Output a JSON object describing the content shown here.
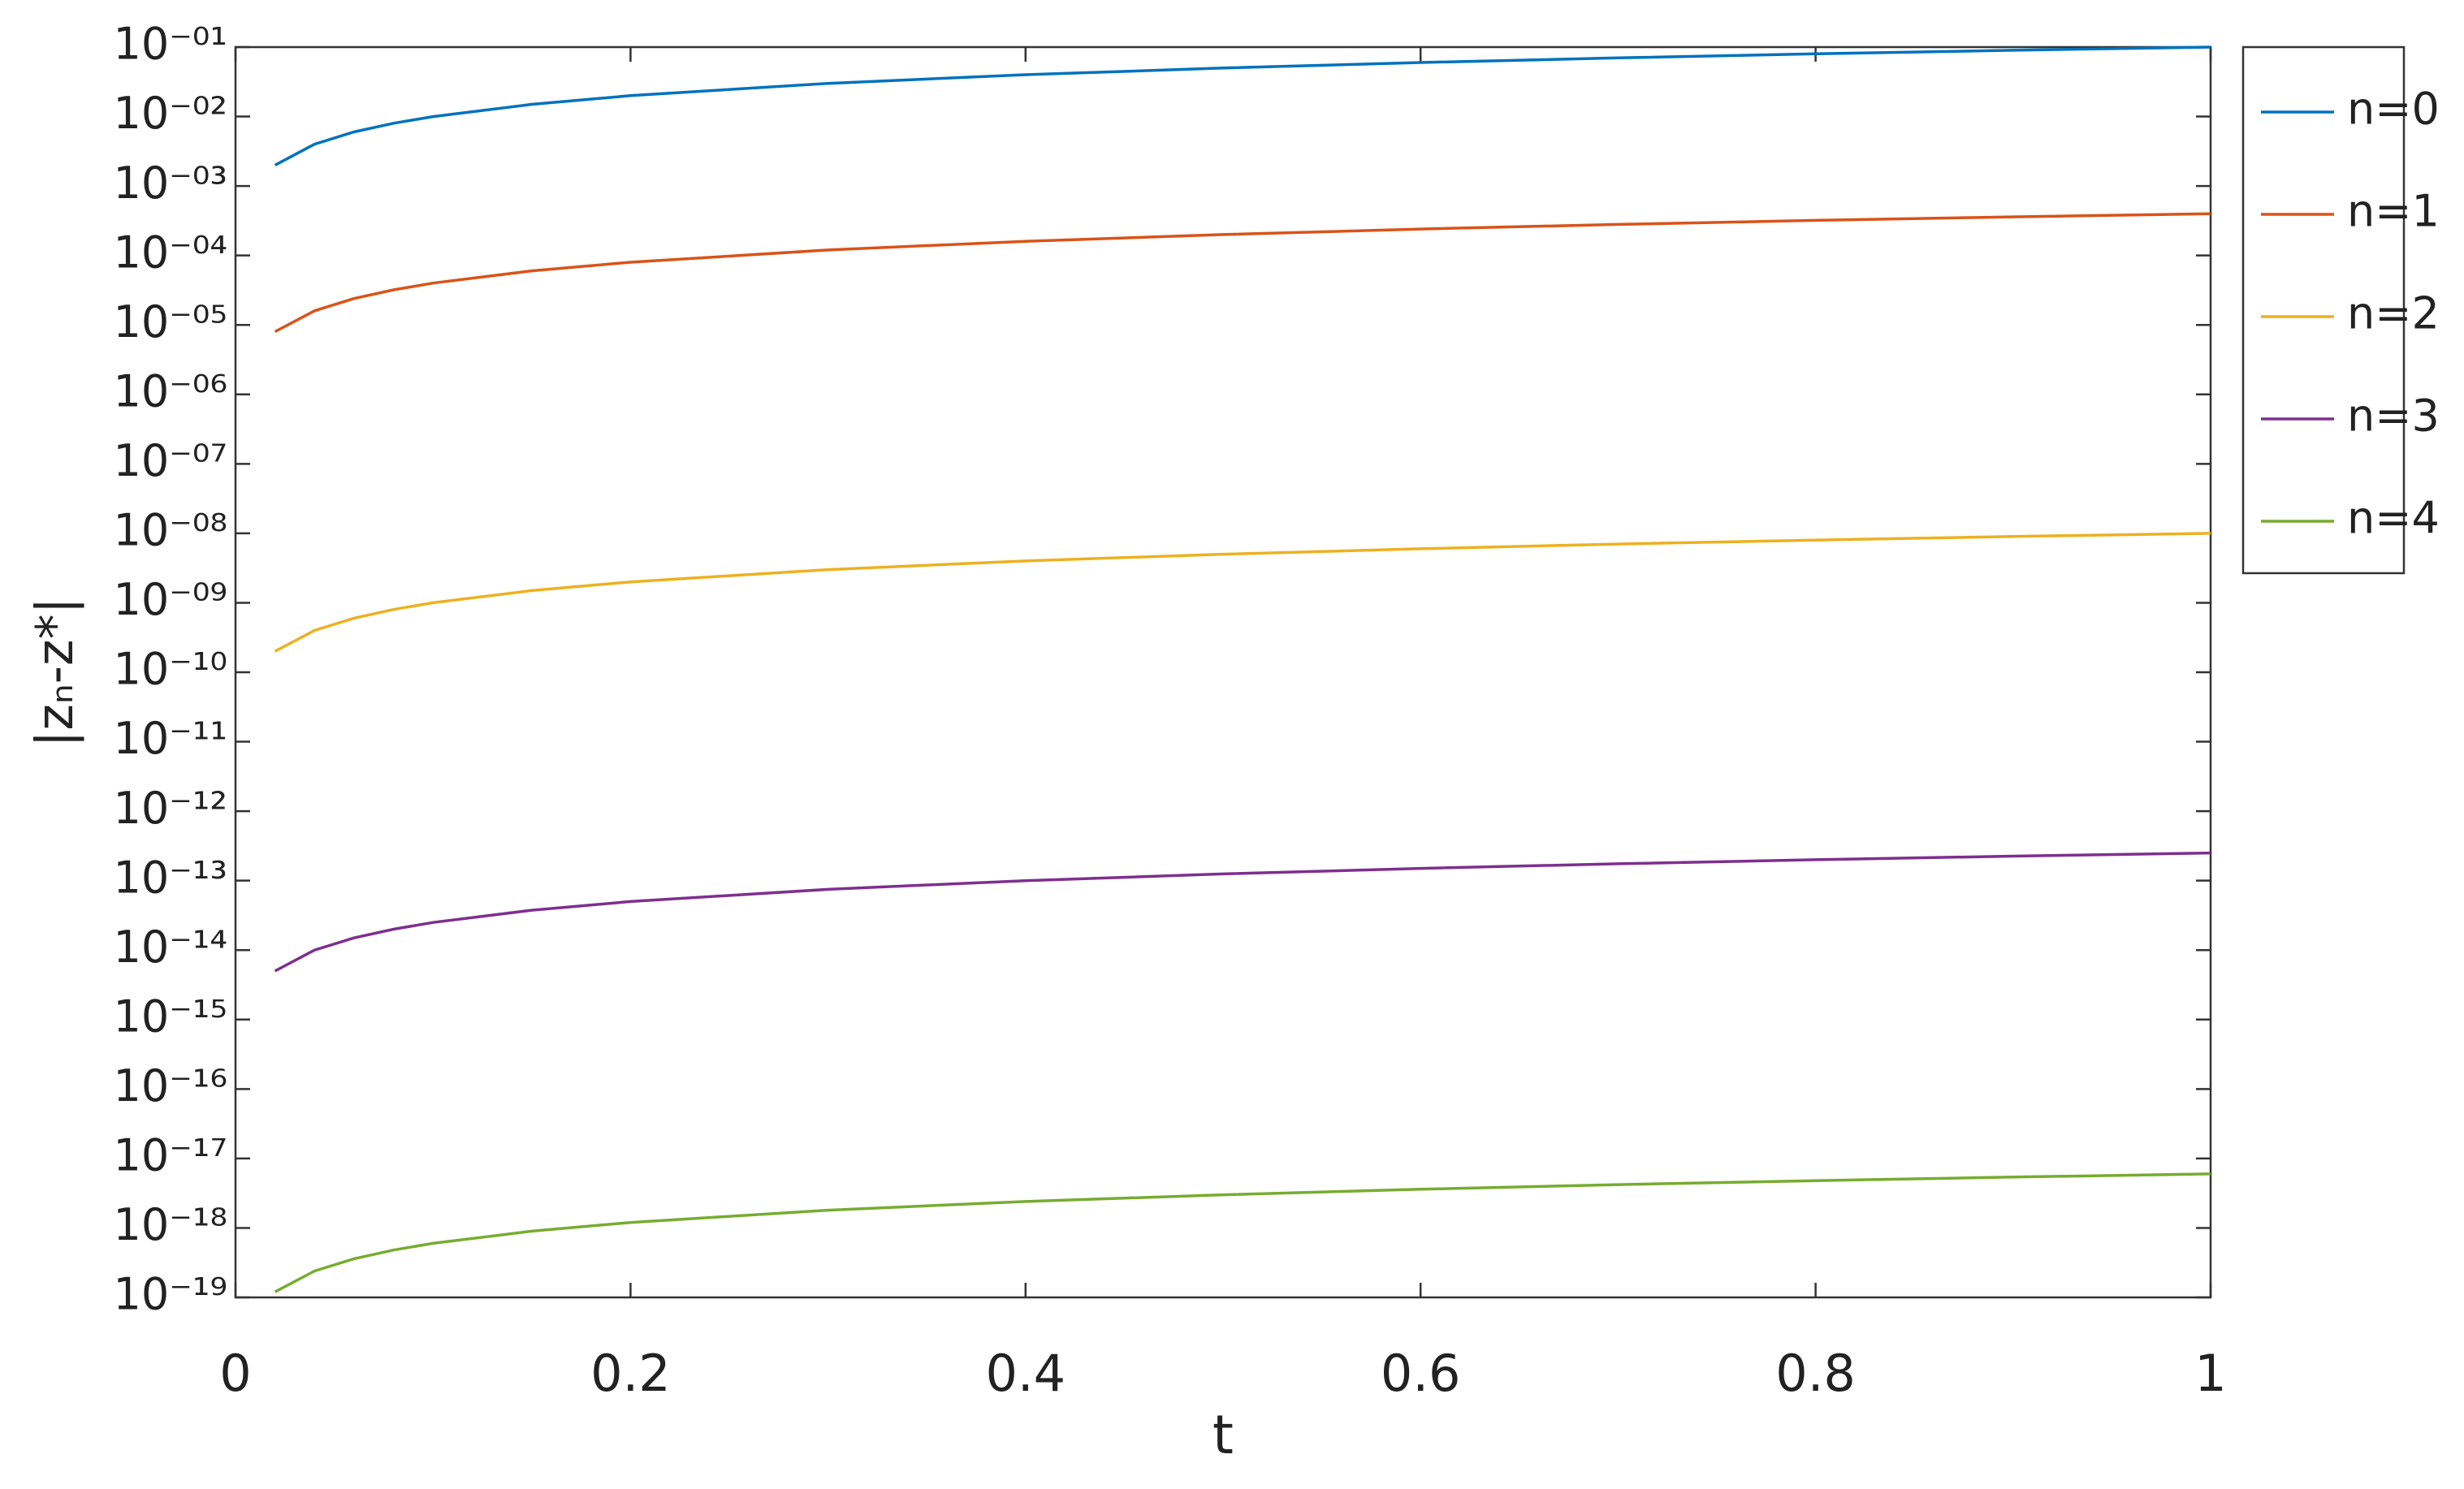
{
  "chart_data": {
    "type": "line",
    "xlabel": "t",
    "ylabel": "|zₙ-z*|",
    "x": [
      0.02,
      0.04,
      0.06,
      0.08,
      0.1,
      0.15,
      0.2,
      0.3,
      0.4,
      0.5,
      0.6,
      0.7,
      0.8,
      0.9,
      1
    ],
    "series": [
      {
        "name": "n=0",
        "color": "#0072bd",
        "values": [
          0.002,
          0.004,
          0.006,
          0.008,
          0.01,
          0.015,
          0.02,
          0.03,
          0.04,
          0.05,
          0.06,
          0.07,
          0.08,
          0.09,
          0.1
        ]
      },
      {
        "name": "n=1",
        "color": "#d95319",
        "values": [
          8e-06,
          1.6e-05,
          2.4e-05,
          3.2e-05,
          4e-05,
          6e-05,
          8e-05,
          0.00012,
          0.00016,
          0.0002,
          0.00024,
          0.00028,
          0.00032,
          0.00036,
          0.0004
        ]
      },
      {
        "name": "n=2",
        "color": "#edb120",
        "values": [
          2e-10,
          4e-10,
          6e-10,
          8e-10,
          1e-09,
          1.5e-09,
          2e-09,
          3e-09,
          4e-09,
          5e-09,
          6e-09,
          7e-09,
          8e-09,
          9e-09,
          1e-08
        ]
      },
      {
        "name": "n=3",
        "color": "#7e2f8e",
        "values": [
          5e-15,
          1e-14,
          1.5e-14,
          2e-14,
          2.5e-14,
          3.75e-14,
          5e-14,
          7.5e-14,
          1e-13,
          1.25e-13,
          1.5e-13,
          1.75e-13,
          2e-13,
          2.25e-13,
          2.5e-13
        ]
      },
      {
        "name": "n=4",
        "color": "#77ac30",
        "values": [
          1.2e-19,
          2.4e-19,
          3.6e-19,
          4.8e-19,
          6e-19,
          9e-19,
          1.2e-18,
          1.8e-18,
          2.4e-18,
          3e-18,
          3.6e-18,
          4.2e-18,
          4.8e-18,
          5.4e-18,
          6e-18
        ]
      }
    ],
    "xlim": [
      0,
      1
    ],
    "xticks": [
      0,
      0.2,
      0.4,
      0.6,
      0.8,
      1
    ],
    "ylim": [
      1e-19,
      0.1
    ],
    "yscale": "log",
    "yticks": [
      {
        "value": 1e-19,
        "label": "10⁻¹⁹"
      },
      {
        "value": 1e-18,
        "label": "10⁻¹⁸"
      },
      {
        "value": 1e-17,
        "label": "10⁻¹⁷"
      },
      {
        "value": 1e-16,
        "label": "10⁻¹⁶"
      },
      {
        "value": 1e-15,
        "label": "10⁻¹⁵"
      },
      {
        "value": 1e-14,
        "label": "10⁻¹⁴"
      },
      {
        "value": 1e-13,
        "label": "10⁻¹³"
      },
      {
        "value": 1e-12,
        "label": "10⁻¹²"
      },
      {
        "value": 1e-11,
        "label": "10⁻¹¹"
      },
      {
        "value": 1e-10,
        "label": "10⁻¹⁰"
      },
      {
        "value": 1e-09,
        "label": "10⁻⁰⁹"
      },
      {
        "value": 1e-08,
        "label": "10⁻⁰⁸"
      },
      {
        "value": 1e-07,
        "label": "10⁻⁰⁷"
      },
      {
        "value": 1e-06,
        "label": "10⁻⁰⁶"
      },
      {
        "value": 1e-05,
        "label": "10⁻⁰⁵"
      },
      {
        "value": 0.0001,
        "label": "10⁻⁰⁴"
      },
      {
        "value": 0.001,
        "label": "10⁻⁰³"
      },
      {
        "value": 0.01,
        "label": "10⁻⁰²"
      },
      {
        "value": 0.1,
        "label": "10⁻⁰¹"
      }
    ],
    "grid": false,
    "legend": "northeast-outside"
  }
}
